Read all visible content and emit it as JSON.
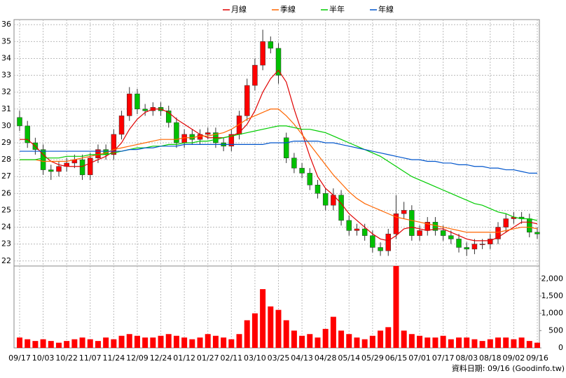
{
  "chart_data": [
    {
      "type": "candlestick",
      "categories": [
        "09/17",
        null,
        null,
        "10/03",
        null,
        null,
        "10/22",
        null,
        null,
        "11/07",
        null,
        null,
        "11/24",
        null,
        null,
        "12/09",
        null,
        null,
        "12/24",
        null,
        null,
        "01/12",
        null,
        null,
        "01/27",
        null,
        null,
        "02/11",
        null,
        null,
        "03/10",
        null,
        null,
        "03/25",
        null,
        null,
        "04/13",
        null,
        null,
        "04/28",
        null,
        null,
        "05/14",
        null,
        null,
        "05/29",
        null,
        null,
        "06/15",
        null,
        null,
        "07/01",
        null,
        null,
        "07/17",
        null,
        null,
        "08/03",
        null,
        null,
        "08/18",
        null,
        null,
        "09/02",
        null,
        null,
        "09/16"
      ],
      "open": [
        30.5,
        30.0,
        29.0,
        28.6,
        27.4,
        27.3,
        27.6,
        27.8,
        28.0,
        27.1,
        28.1,
        28.6,
        28.3,
        29.5,
        30.6,
        31.9,
        31.0,
        30.9,
        31.1,
        30.9,
        30.2,
        29.0,
        29.5,
        29.2,
        29.5,
        29.6,
        29.0,
        28.8,
        29.5,
        30.6,
        32.4,
        33.6,
        35.0,
        34.6,
        29.3,
        28.1,
        27.5,
        27.2,
        26.5,
        26.0,
        25.3,
        25.9,
        24.4,
        23.8,
        23.9,
        23.5,
        22.8,
        22.6,
        23.6,
        24.8,
        25.0,
        23.5,
        23.8,
        24.3,
        23.8,
        23.5,
        23.3,
        22.8,
        22.7,
        23.0,
        23.0,
        23.3,
        24.0,
        24.5,
        24.6,
        24.5,
        23.7
      ],
      "high": [
        30.9,
        30.3,
        29.3,
        28.9,
        27.7,
        27.9,
        28.1,
        28.3,
        28.3,
        28.4,
        28.9,
        28.9,
        29.8,
        30.9,
        32.3,
        32.2,
        31.3,
        31.4,
        31.4,
        31.2,
        30.5,
        29.8,
        29.8,
        29.8,
        29.9,
        29.9,
        29.3,
        29.8,
        30.9,
        32.8,
        34.0,
        35.7,
        35.3,
        34.9,
        29.6,
        28.4,
        27.8,
        27.5,
        26.8,
        26.3,
        26.3,
        26.2,
        24.7,
        24.2,
        24.2,
        23.8,
        23.1,
        23.9,
        25.9,
        25.5,
        25.3,
        24.1,
        24.6,
        24.6,
        24.1,
        23.8,
        23.6,
        23.1,
        23.3,
        23.3,
        23.6,
        24.3,
        24.8,
        24.9,
        24.9,
        24.8,
        24.0
      ],
      "low": [
        29.7,
        28.7,
        28.3,
        27.1,
        26.8,
        27.0,
        27.3,
        27.5,
        26.8,
        26.8,
        27.8,
        28.0,
        28.0,
        29.2,
        30.3,
        30.7,
        30.6,
        30.6,
        30.6,
        29.9,
        28.7,
        28.7,
        28.9,
        28.9,
        29.2,
        28.7,
        28.5,
        28.5,
        29.2,
        30.3,
        32.1,
        33.3,
        34.3,
        32.5,
        27.8,
        27.2,
        26.9,
        26.2,
        25.7,
        25.0,
        25.0,
        24.1,
        23.5,
        23.5,
        23.2,
        22.5,
        22.3,
        22.3,
        23.3,
        24.5,
        23.2,
        23.2,
        23.5,
        23.5,
        23.2,
        23.0,
        22.5,
        22.3,
        22.4,
        22.7,
        22.7,
        23.0,
        23.7,
        24.2,
        24.2,
        23.4,
        23.3
      ],
      "close": [
        30.0,
        29.0,
        28.6,
        27.4,
        27.3,
        27.6,
        27.8,
        28.0,
        27.1,
        28.1,
        28.6,
        28.3,
        29.5,
        30.6,
        31.9,
        31.0,
        30.9,
        31.1,
        30.9,
        30.2,
        29.0,
        29.5,
        29.2,
        29.5,
        29.6,
        29.0,
        28.8,
        29.5,
        30.6,
        32.4,
        33.6,
        35.0,
        34.6,
        33.0,
        28.1,
        27.5,
        27.2,
        26.5,
        26.0,
        25.3,
        25.9,
        24.4,
        23.8,
        23.9,
        23.5,
        22.8,
        22.6,
        23.6,
        24.8,
        25.0,
        23.5,
        23.8,
        24.3,
        23.8,
        23.5,
        23.3,
        22.8,
        22.7,
        23.0,
        23.0,
        23.3,
        24.0,
        24.5,
        24.6,
        24.5,
        23.7,
        23.6
      ],
      "up_color": "#ff0000",
      "down_color": "#00c000",
      "series": [
        {
          "name": "月線",
          "color": "#e00000",
          "values": [
            29.2,
            29.2,
            28.8,
            28.3,
            27.9,
            27.7,
            27.6,
            27.6,
            27.6,
            27.8,
            28.0,
            28.2,
            28.5,
            29.0,
            29.8,
            30.4,
            30.8,
            31.0,
            31.0,
            30.8,
            30.4,
            30.1,
            29.8,
            29.5,
            29.3,
            29.3,
            29.3,
            29.4,
            29.6,
            30.1,
            30.9,
            32.0,
            32.8,
            33.3,
            32.6,
            31.0,
            29.6,
            28.2,
            27.0,
            26.3,
            25.9,
            25.4,
            24.8,
            24.4,
            24.0,
            23.6,
            23.3,
            23.2,
            23.5,
            23.9,
            24.0,
            23.9,
            23.8,
            23.9,
            23.9,
            23.7,
            23.5,
            23.3,
            23.2,
            23.2,
            23.2,
            23.4,
            23.7,
            24.0,
            24.3,
            24.3,
            24.2
          ]
        },
        {
          "name": "季線",
          "color": "#ff6600",
          "values": [
            28.0,
            28.0,
            28.0,
            27.9,
            27.9,
            27.9,
            27.9,
            28.0,
            28.1,
            28.2,
            28.3,
            28.4,
            28.6,
            28.7,
            28.8,
            28.9,
            29.0,
            29.1,
            29.2,
            29.2,
            29.2,
            29.3,
            29.3,
            29.4,
            29.4,
            29.5,
            29.6,
            29.8,
            30.1,
            30.4,
            30.6,
            30.8,
            31.0,
            31.0,
            30.6,
            30.1,
            29.5,
            28.9,
            28.3,
            27.7,
            27.1,
            26.6,
            26.1,
            25.7,
            25.4,
            25.2,
            25.0,
            24.8,
            24.6,
            24.5,
            24.4,
            24.3,
            24.2,
            24.1,
            24.0,
            23.9,
            23.8,
            23.7,
            23.7,
            23.7,
            23.7,
            23.7,
            23.8,
            23.9,
            24.0,
            24.0,
            23.9
          ]
        },
        {
          "name": "半年",
          "color": "#00cc00",
          "values": [
            28.0,
            28.0,
            28.0,
            28.1,
            28.1,
            28.1,
            28.2,
            28.2,
            28.2,
            28.3,
            28.3,
            28.3,
            28.4,
            28.5,
            28.6,
            28.7,
            28.7,
            28.8,
            28.8,
            28.9,
            28.9,
            29.0,
            29.0,
            29.1,
            29.1,
            29.2,
            29.3,
            29.4,
            29.5,
            29.6,
            29.7,
            29.8,
            29.9,
            30.0,
            30.0,
            29.9,
            29.8,
            29.8,
            29.7,
            29.6,
            29.4,
            29.2,
            29.0,
            28.8,
            28.6,
            28.4,
            28.2,
            27.9,
            27.6,
            27.3,
            27.0,
            26.8,
            26.6,
            26.4,
            26.2,
            26.0,
            25.8,
            25.6,
            25.4,
            25.3,
            25.1,
            24.9,
            24.8,
            24.6,
            24.5,
            24.5,
            24.4
          ]
        },
        {
          "name": "年線",
          "color": "#0055cc",
          "values": [
            28.5,
            28.5,
            28.5,
            28.5,
            28.5,
            28.5,
            28.5,
            28.5,
            28.5,
            28.5,
            28.5,
            28.5,
            28.5,
            28.5,
            28.6,
            28.6,
            28.7,
            28.7,
            28.8,
            28.8,
            28.8,
            28.9,
            28.9,
            28.9,
            28.9,
            28.9,
            28.9,
            28.9,
            28.9,
            28.9,
            28.9,
            28.9,
            29.0,
            29.0,
            29.0,
            29.1,
            29.1,
            29.1,
            29.1,
            29.0,
            29.0,
            28.9,
            28.8,
            28.7,
            28.6,
            28.5,
            28.4,
            28.3,
            28.2,
            28.1,
            28.0,
            28.0,
            27.9,
            27.9,
            27.8,
            27.8,
            27.7,
            27.7,
            27.6,
            27.6,
            27.5,
            27.5,
            27.4,
            27.4,
            27.3,
            27.2,
            27.2
          ]
        }
      ],
      "ylim": [
        21.7,
        36.3
      ],
      "yticks": [
        22,
        23,
        24,
        25,
        26,
        27,
        28,
        29,
        30,
        31,
        32,
        33,
        34,
        35,
        36
      ],
      "grid": true
    },
    {
      "type": "bar",
      "color": "#ff0000",
      "values": [
        300,
        250,
        200,
        250,
        200,
        150,
        200,
        250,
        300,
        250,
        200,
        300,
        250,
        350,
        400,
        350,
        300,
        300,
        350,
        400,
        350,
        300,
        250,
        300,
        400,
        350,
        300,
        250,
        400,
        800,
        1000,
        1700,
        1200,
        1100,
        800,
        500,
        350,
        400,
        300,
        550,
        900,
        500,
        400,
        300,
        250,
        350,
        500,
        600,
        2370,
        500,
        400,
        350,
        300,
        300,
        350,
        250,
        300,
        300,
        250,
        200,
        250,
        300,
        300,
        250,
        300,
        200,
        150
      ],
      "ylim": [
        0,
        2370
      ],
      "yticks": [
        0,
        500,
        {
          "value": 1000,
          "label": "1,000"
        },
        {
          "value": 1500,
          "label": "1,500"
        },
        {
          "value": 2000,
          "label": "2,000"
        }
      ],
      "grid": true
    }
  ],
  "footer": "資料日期: 09/16 (Goodinfo.tw)"
}
